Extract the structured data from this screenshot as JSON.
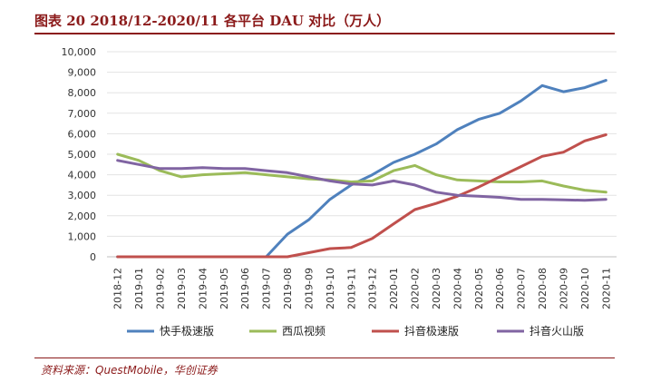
{
  "figure": {
    "title": "图表 20   2018/12-2020/11 各平台 DAU 对比（万人）",
    "source": "资料来源：QuestMobile，华创证券"
  },
  "colors": {
    "title": "#8b1a1a",
    "kuaishou": "#4f81bd",
    "xigua": "#9bbb59",
    "douyin_lite": "#c0504d",
    "huoshan": "#8064a2"
  },
  "chart_data": {
    "type": "line",
    "categories": [
      "2018-12",
      "2019-01",
      "2019-02",
      "2019-03",
      "2019-04",
      "2019-05",
      "2019-06",
      "2019-07",
      "2019-08",
      "2019-09",
      "2019-10",
      "2019-11",
      "2019-12",
      "2020-01",
      "2020-02",
      "2020-03",
      "2020-04",
      "2020-05",
      "2020-06",
      "2020-07",
      "2020-08",
      "2020-09",
      "2020-10",
      "2020-11"
    ],
    "ylim": [
      0,
      10000
    ],
    "yticks": [
      "0",
      "1,000",
      "2,000",
      "3,000",
      "4,000",
      "5,000",
      "6,000",
      "7,000",
      "8,000",
      "9,000",
      "10,000"
    ],
    "grid": true,
    "legend": "bottom",
    "series": [
      {
        "name": "快手极速版",
        "color": "#4f81bd",
        "values": [
          0,
          0,
          0,
          0,
          0,
          0,
          0,
          0,
          1100,
          1800,
          2800,
          3500,
          4000,
          4600,
          5000,
          5500,
          6200,
          6700,
          7000,
          7600,
          8350,
          8050,
          8250,
          8600
        ]
      },
      {
        "name": "西瓜视频",
        "color": "#9bbb59",
        "values": [
          5000,
          4700,
          4200,
          3900,
          4000,
          4050,
          4100,
          4000,
          3900,
          3800,
          3750,
          3650,
          3700,
          4200,
          4450,
          4000,
          3750,
          3700,
          3650,
          3650,
          3700,
          3450,
          3250,
          3150
        ]
      },
      {
        "name": "抖音极速版",
        "color": "#c0504d",
        "values": [
          0,
          0,
          0,
          0,
          0,
          0,
          0,
          0,
          0,
          200,
          400,
          450,
          900,
          1600,
          2300,
          2600,
          2950,
          3400,
          3900,
          4400,
          4900,
          5100,
          5650,
          5950
        ]
      },
      {
        "name": "抖音火山版",
        "color": "#8064a2",
        "values": [
          4700,
          4500,
          4300,
          4300,
          4350,
          4300,
          4300,
          4200,
          4100,
          3900,
          3700,
          3550,
          3500,
          3700,
          3500,
          3150,
          3000,
          2950,
          2900,
          2800,
          2800,
          2780,
          2750,
          2800
        ]
      }
    ]
  }
}
